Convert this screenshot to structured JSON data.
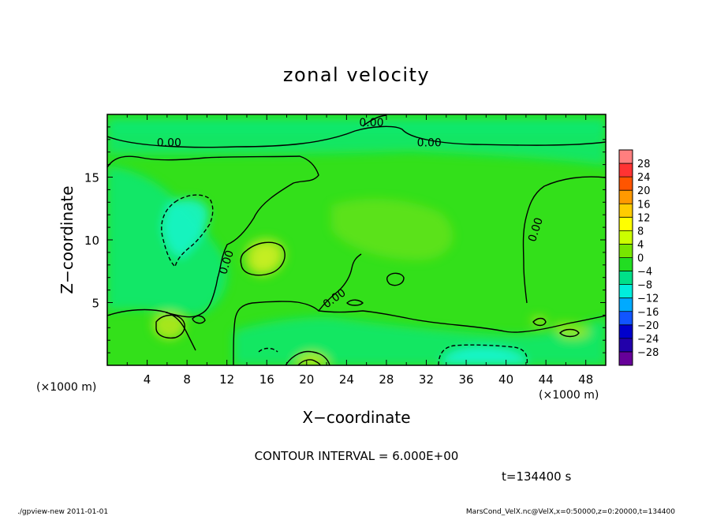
{
  "chart_data": {
    "type": "heatmap",
    "title": "zonal velocity",
    "xlabel": "X−coordinate",
    "ylabel": "Z−coordinate",
    "x_unit_left": "(×1000 m)",
    "x_unit_right": "(×1000 m)",
    "xlim": [
      0,
      50
    ],
    "ylim": [
      0,
      20
    ],
    "x_ticks": [
      4,
      8,
      12,
      16,
      20,
      24,
      28,
      32,
      36,
      40,
      44,
      48
    ],
    "y_ticks": [
      5,
      10,
      15
    ],
    "contour_labels": [
      {
        "text": "0.00",
        "x": 26.5,
        "y": 19.3
      },
      {
        "text": "0.00",
        "x": 6.2,
        "y": 17.7
      },
      {
        "text": "0.00",
        "x": 32.3,
        "y": 17.7
      },
      {
        "text": "0.00",
        "x": 43.0,
        "y": 10.8
      },
      {
        "text": "0.00",
        "x": 12.0,
        "y": 8.2
      },
      {
        "text": "0.00",
        "x": 22.8,
        "y": 5.3
      }
    ],
    "colorbar": {
      "levels": [
        "28",
        "24",
        "20",
        "16",
        "12",
        "8",
        "4",
        "0",
        "−4",
        "−8",
        "−12",
        "−16",
        "−20",
        "−24",
        "−28"
      ],
      "colors": [
        "#ff7f7f",
        "#ff3333",
        "#ff5500",
        "#ff9900",
        "#ffcc00",
        "#ffff00",
        "#ccff00",
        "#77e600",
        "#22dd22",
        "#00e088",
        "#00eedd",
        "#00aaff",
        "#1155ff",
        "#0000cc",
        "#2200aa",
        "#660099"
      ]
    },
    "field_colors": {
      "base": "#33e01a",
      "negative": "#10e870",
      "strong_negative": "#16f4c8",
      "positive": "#a6e61a",
      "strong_positive": "#c8ee22"
    },
    "contour_interval_text": "CONTOUR INTERVAL = 6.000E+00",
    "time_text": "t=134400 s"
  },
  "footer": {
    "left": "./gpview-new  2011-01-01",
    "right": "MarsCond_VelX.nc@VelX,x=0:50000,z=0:20000,t=134400"
  }
}
